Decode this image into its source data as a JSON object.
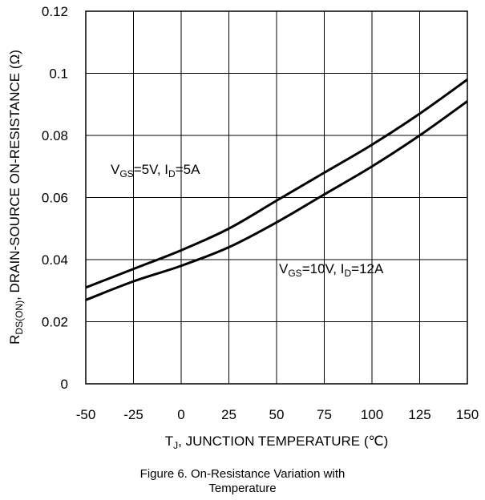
{
  "chart_data": {
    "type": "line",
    "x": [
      -50,
      -25,
      0,
      25,
      50,
      75,
      100,
      125,
      150
    ],
    "series": [
      {
        "values": [
          0.031,
          0.037,
          0.043,
          0.05,
          0.059,
          0.068,
          0.077,
          0.087,
          0.098
        ]
      },
      {
        "values": [
          0.027,
          0.033,
          0.038,
          0.044,
          0.052,
          0.061,
          0.07,
          0.08,
          0.091
        ]
      }
    ],
    "xlim": [
      -50,
      150
    ],
    "ylim": [
      0,
      0.12
    ],
    "x_ticks": [
      "-50",
      "-25",
      "0",
      "25",
      "50",
      "75",
      "100",
      "125",
      "150"
    ],
    "y_ticks": [
      "0",
      "0.02",
      "0.04",
      "0.06",
      "0.08",
      "0.1",
      "0.12"
    ],
    "y_tick_values": [
      0,
      0.02,
      0.04,
      0.06,
      0.08,
      0.1,
      0.12
    ],
    "grid": true,
    "annotations": [
      {
        "parts": [
          {
            "t": "V",
            "sub": false
          },
          {
            "t": "GS",
            "sub": true
          },
          {
            "t": "=5V, I",
            "sub": false
          },
          {
            "t": "D",
            "sub": true
          },
          {
            "t": "=5A",
            "sub": false
          }
        ]
      },
      {
        "parts": [
          {
            "t": "V",
            "sub": false
          },
          {
            "t": "GS",
            "sub": true
          },
          {
            "t": "=10V, I",
            "sub": false
          },
          {
            "t": "D",
            "sub": true
          },
          {
            "t": "=12A",
            "sub": false
          }
        ]
      }
    ],
    "ylabel": {
      "parts": [
        {
          "t": "R",
          "sub": false
        },
        {
          "t": "DS(ON)",
          "sub": true
        },
        {
          "t": ", DRAIN-SOURCE ON-RESISTANCE (Ω)",
          "sub": false
        }
      ]
    },
    "xlabel": {
      "parts": [
        {
          "t": "T",
          "sub": false
        },
        {
          "t": "J",
          "sub": true
        },
        {
          "t": ", JUNCTION TEMPERATURE (℃)",
          "sub": false
        }
      ]
    }
  },
  "caption": {
    "line1": "Figure 6. On-Resistance Variation with",
    "line2": "Temperature"
  }
}
